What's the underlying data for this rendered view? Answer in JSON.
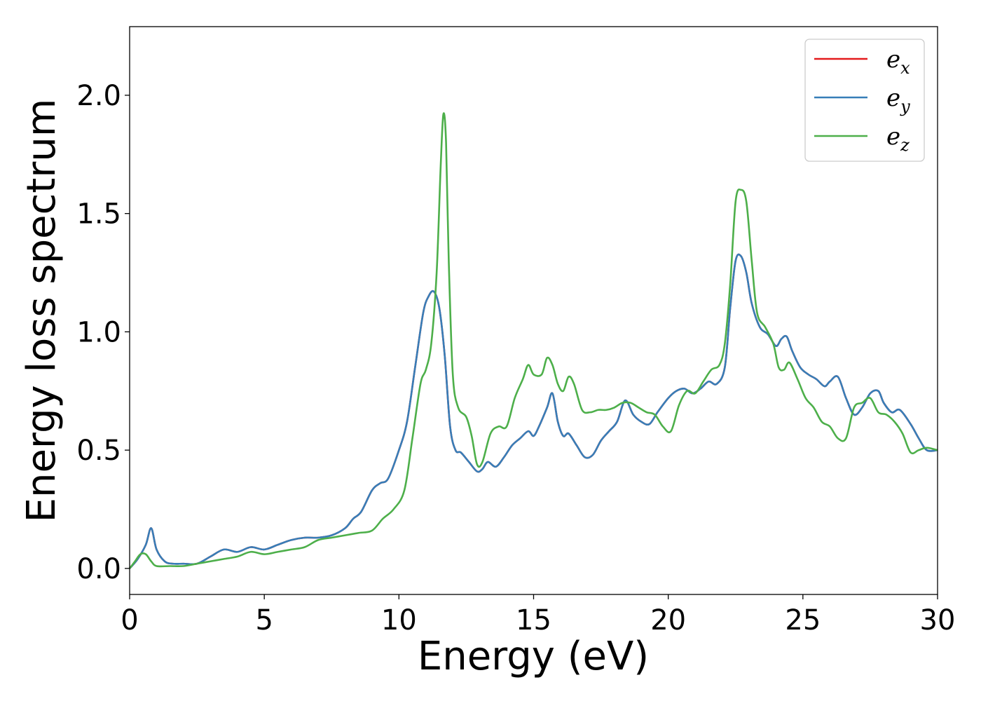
{
  "chart_data": {
    "type": "line",
    "title": "",
    "xlabel": "Energy (eV)",
    "ylabel": "Energy loss spectrum",
    "xlim": [
      0,
      30
    ],
    "ylim": [
      -0.11,
      2.29
    ],
    "xticks": [
      0,
      5,
      10,
      15,
      20,
      25,
      30
    ],
    "xtick_labels": [
      "0",
      "5",
      "10",
      "15",
      "20",
      "25",
      "30"
    ],
    "yticks": [
      0.0,
      0.5,
      1.0,
      1.5,
      2.0
    ],
    "ytick_labels": [
      "0.0",
      "0.5",
      "1.0",
      "1.5",
      "2.0"
    ],
    "grid": false,
    "legend_position": "top-right",
    "series": [
      {
        "name": "e_x",
        "legend_main": "e",
        "legend_sub": "x",
        "color": "#e41a1c",
        "x": [
          0,
          0.3,
          0.6,
          0.8,
          1.0,
          1.3,
          1.6,
          2.0,
          2.5,
          3.0,
          3.5,
          4.0,
          4.5,
          5.0,
          5.5,
          6.0,
          6.5,
          7.0,
          7.5,
          8.0,
          8.3,
          8.6,
          9.0,
          9.3,
          9.6,
          10.0,
          10.3,
          10.6,
          10.9,
          11.1,
          11.3,
          11.5,
          11.7,
          11.9,
          12.1,
          12.3,
          12.6,
          12.9,
          13.1,
          13.3,
          13.6,
          13.9,
          14.2,
          14.5,
          14.8,
          15.0,
          15.2,
          15.5,
          15.7,
          15.9,
          16.1,
          16.3,
          16.6,
          16.9,
          17.2,
          17.5,
          17.8,
          18.1,
          18.4,
          18.7,
          19.0,
          19.3,
          19.6,
          20.0,
          20.3,
          20.6,
          20.9,
          21.2,
          21.5,
          21.8,
          22.1,
          22.3,
          22.5,
          22.7,
          22.9,
          23.1,
          23.4,
          23.7,
          24.0,
          24.2,
          24.4,
          24.6,
          24.9,
          25.2,
          25.5,
          25.8,
          26.0,
          26.3,
          26.6,
          26.9,
          27.2,
          27.5,
          27.8,
          28.0,
          28.3,
          28.6,
          29.0,
          29.3,
          29.6,
          30.0
        ],
        "y": [
          0.0,
          0.04,
          0.1,
          0.17,
          0.08,
          0.03,
          0.02,
          0.02,
          0.02,
          0.05,
          0.08,
          0.07,
          0.09,
          0.08,
          0.1,
          0.12,
          0.13,
          0.13,
          0.14,
          0.17,
          0.21,
          0.24,
          0.33,
          0.36,
          0.38,
          0.5,
          0.62,
          0.85,
          1.08,
          1.15,
          1.17,
          1.1,
          0.9,
          0.6,
          0.5,
          0.49,
          0.45,
          0.41,
          0.42,
          0.45,
          0.43,
          0.47,
          0.52,
          0.55,
          0.58,
          0.56,
          0.6,
          0.68,
          0.74,
          0.62,
          0.56,
          0.57,
          0.52,
          0.47,
          0.48,
          0.54,
          0.58,
          0.62,
          0.71,
          0.65,
          0.62,
          0.61,
          0.66,
          0.72,
          0.75,
          0.76,
          0.74,
          0.76,
          0.79,
          0.78,
          0.85,
          1.1,
          1.3,
          1.32,
          1.25,
          1.12,
          1.02,
          0.99,
          0.94,
          0.97,
          0.98,
          0.92,
          0.85,
          0.82,
          0.8,
          0.77,
          0.79,
          0.81,
          0.72,
          0.65,
          0.68,
          0.74,
          0.75,
          0.7,
          0.66,
          0.67,
          0.61,
          0.55,
          0.5,
          0.5
        ]
      },
      {
        "name": "e_y",
        "legend_main": "e",
        "legend_sub": "y",
        "color": "#377eb8",
        "x": [
          0,
          0.3,
          0.6,
          0.8,
          1.0,
          1.3,
          1.6,
          2.0,
          2.5,
          3.0,
          3.5,
          4.0,
          4.5,
          5.0,
          5.5,
          6.0,
          6.5,
          7.0,
          7.5,
          8.0,
          8.3,
          8.6,
          9.0,
          9.3,
          9.6,
          10.0,
          10.3,
          10.6,
          10.9,
          11.1,
          11.3,
          11.5,
          11.7,
          11.9,
          12.1,
          12.3,
          12.6,
          12.9,
          13.1,
          13.3,
          13.6,
          13.9,
          14.2,
          14.5,
          14.8,
          15.0,
          15.2,
          15.5,
          15.7,
          15.9,
          16.1,
          16.3,
          16.6,
          16.9,
          17.2,
          17.5,
          17.8,
          18.1,
          18.4,
          18.7,
          19.0,
          19.3,
          19.6,
          20.0,
          20.3,
          20.6,
          20.9,
          21.2,
          21.5,
          21.8,
          22.1,
          22.3,
          22.5,
          22.7,
          22.9,
          23.1,
          23.4,
          23.7,
          24.0,
          24.2,
          24.4,
          24.6,
          24.9,
          25.2,
          25.5,
          25.8,
          26.0,
          26.3,
          26.6,
          26.9,
          27.2,
          27.5,
          27.8,
          28.0,
          28.3,
          28.6,
          29.0,
          29.3,
          29.6,
          30.0
        ],
        "y": [
          0.0,
          0.04,
          0.1,
          0.17,
          0.08,
          0.03,
          0.02,
          0.02,
          0.02,
          0.05,
          0.08,
          0.07,
          0.09,
          0.08,
          0.1,
          0.12,
          0.13,
          0.13,
          0.14,
          0.17,
          0.21,
          0.24,
          0.33,
          0.36,
          0.38,
          0.5,
          0.62,
          0.85,
          1.08,
          1.15,
          1.17,
          1.1,
          0.9,
          0.6,
          0.5,
          0.49,
          0.45,
          0.41,
          0.42,
          0.45,
          0.43,
          0.47,
          0.52,
          0.55,
          0.58,
          0.56,
          0.6,
          0.68,
          0.74,
          0.62,
          0.56,
          0.57,
          0.52,
          0.47,
          0.48,
          0.54,
          0.58,
          0.62,
          0.71,
          0.65,
          0.62,
          0.61,
          0.66,
          0.72,
          0.75,
          0.76,
          0.74,
          0.76,
          0.79,
          0.78,
          0.85,
          1.1,
          1.3,
          1.32,
          1.25,
          1.12,
          1.02,
          0.99,
          0.94,
          0.97,
          0.98,
          0.92,
          0.85,
          0.82,
          0.8,
          0.77,
          0.79,
          0.81,
          0.72,
          0.65,
          0.68,
          0.74,
          0.75,
          0.7,
          0.66,
          0.67,
          0.61,
          0.55,
          0.5,
          0.5
        ]
      },
      {
        "name": "e_z",
        "legend_main": "e",
        "legend_sub": "z",
        "color": "#4daf4a",
        "x": [
          0,
          0.2,
          0.4,
          0.6,
          0.8,
          1.0,
          1.5,
          2.0,
          2.5,
          3.0,
          3.5,
          4.0,
          4.5,
          5.0,
          5.5,
          6.0,
          6.5,
          7.0,
          7.5,
          8.0,
          8.5,
          9.0,
          9.4,
          9.8,
          10.2,
          10.5,
          10.8,
          11.0,
          11.2,
          11.4,
          11.55,
          11.65,
          11.75,
          11.85,
          12.0,
          12.2,
          12.5,
          12.7,
          12.9,
          13.1,
          13.4,
          13.7,
          14.0,
          14.3,
          14.6,
          14.8,
          15.0,
          15.3,
          15.5,
          15.7,
          15.9,
          16.1,
          16.3,
          16.5,
          16.8,
          17.1,
          17.4,
          17.7,
          18.0,
          18.3,
          18.6,
          18.9,
          19.2,
          19.5,
          19.8,
          20.1,
          20.4,
          20.7,
          21.0,
          21.3,
          21.6,
          21.9,
          22.1,
          22.3,
          22.5,
          22.7,
          22.9,
          23.1,
          23.3,
          23.6,
          23.9,
          24.1,
          24.3,
          24.5,
          24.8,
          25.1,
          25.4,
          25.7,
          26.0,
          26.3,
          26.6,
          26.9,
          27.2,
          27.5,
          27.8,
          28.1,
          28.4,
          28.7,
          29.0,
          29.3,
          29.6,
          30.0
        ],
        "y": [
          0.0,
          0.03,
          0.06,
          0.06,
          0.03,
          0.01,
          0.01,
          0.01,
          0.02,
          0.03,
          0.04,
          0.05,
          0.07,
          0.06,
          0.07,
          0.08,
          0.09,
          0.12,
          0.13,
          0.14,
          0.15,
          0.16,
          0.21,
          0.25,
          0.33,
          0.55,
          0.78,
          0.84,
          0.95,
          1.25,
          1.7,
          1.92,
          1.8,
          1.3,
          0.82,
          0.68,
          0.64,
          0.56,
          0.44,
          0.45,
          0.57,
          0.6,
          0.6,
          0.72,
          0.8,
          0.86,
          0.82,
          0.82,
          0.89,
          0.86,
          0.78,
          0.75,
          0.81,
          0.78,
          0.67,
          0.66,
          0.67,
          0.67,
          0.68,
          0.7,
          0.7,
          0.68,
          0.66,
          0.65,
          0.6,
          0.58,
          0.69,
          0.75,
          0.74,
          0.79,
          0.84,
          0.86,
          0.95,
          1.2,
          1.55,
          1.6,
          1.55,
          1.3,
          1.08,
          1.02,
          0.95,
          0.85,
          0.84,
          0.87,
          0.8,
          0.72,
          0.68,
          0.62,
          0.6,
          0.55,
          0.55,
          0.68,
          0.7,
          0.72,
          0.66,
          0.65,
          0.62,
          0.57,
          0.49,
          0.5,
          0.51,
          0.5
        ]
      }
    ]
  }
}
